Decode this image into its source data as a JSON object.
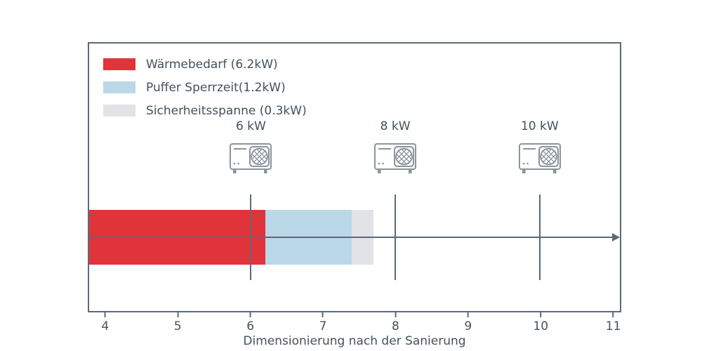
{
  "chart_data": {
    "type": "bar",
    "orientation": "horizontal",
    "title": "",
    "xlabel": "Dimensionierung nach der Sanierung",
    "ylabel": "",
    "xlim": [
      3.76,
      11.11
    ],
    "xticks": [
      4,
      5,
      6,
      7,
      8,
      9,
      10,
      11
    ],
    "grid": false,
    "legend_position": "upper-left",
    "segments": [
      {
        "name": "waermebedarf",
        "label": "Wärmebedarf (6.2kW)",
        "value_kw": 6.2,
        "from": 3.76,
        "to": 6.2,
        "color": "#e0343a"
      },
      {
        "name": "puffer-sperrzeit",
        "label": "Puffer Sperrzeit(1.2kW)",
        "value_kw": 1.2,
        "from": 6.2,
        "to": 7.4,
        "color": "#bad8e8"
      },
      {
        "name": "sicherheitsspanne",
        "label": "Sicherheitsspanne (0.3kW)",
        "value_kw": 0.3,
        "from": 7.4,
        "to": 7.7,
        "color": "#e2e3e7"
      }
    ],
    "pumps": [
      {
        "label": "6 kW",
        "x": 6
      },
      {
        "label": "8 kW",
        "x": 8
      },
      {
        "label": "10 kW",
        "x": 10
      }
    ]
  },
  "colors": {
    "axis": "#5c6a76",
    "text": "#44515d",
    "icon": "#8b949d"
  }
}
